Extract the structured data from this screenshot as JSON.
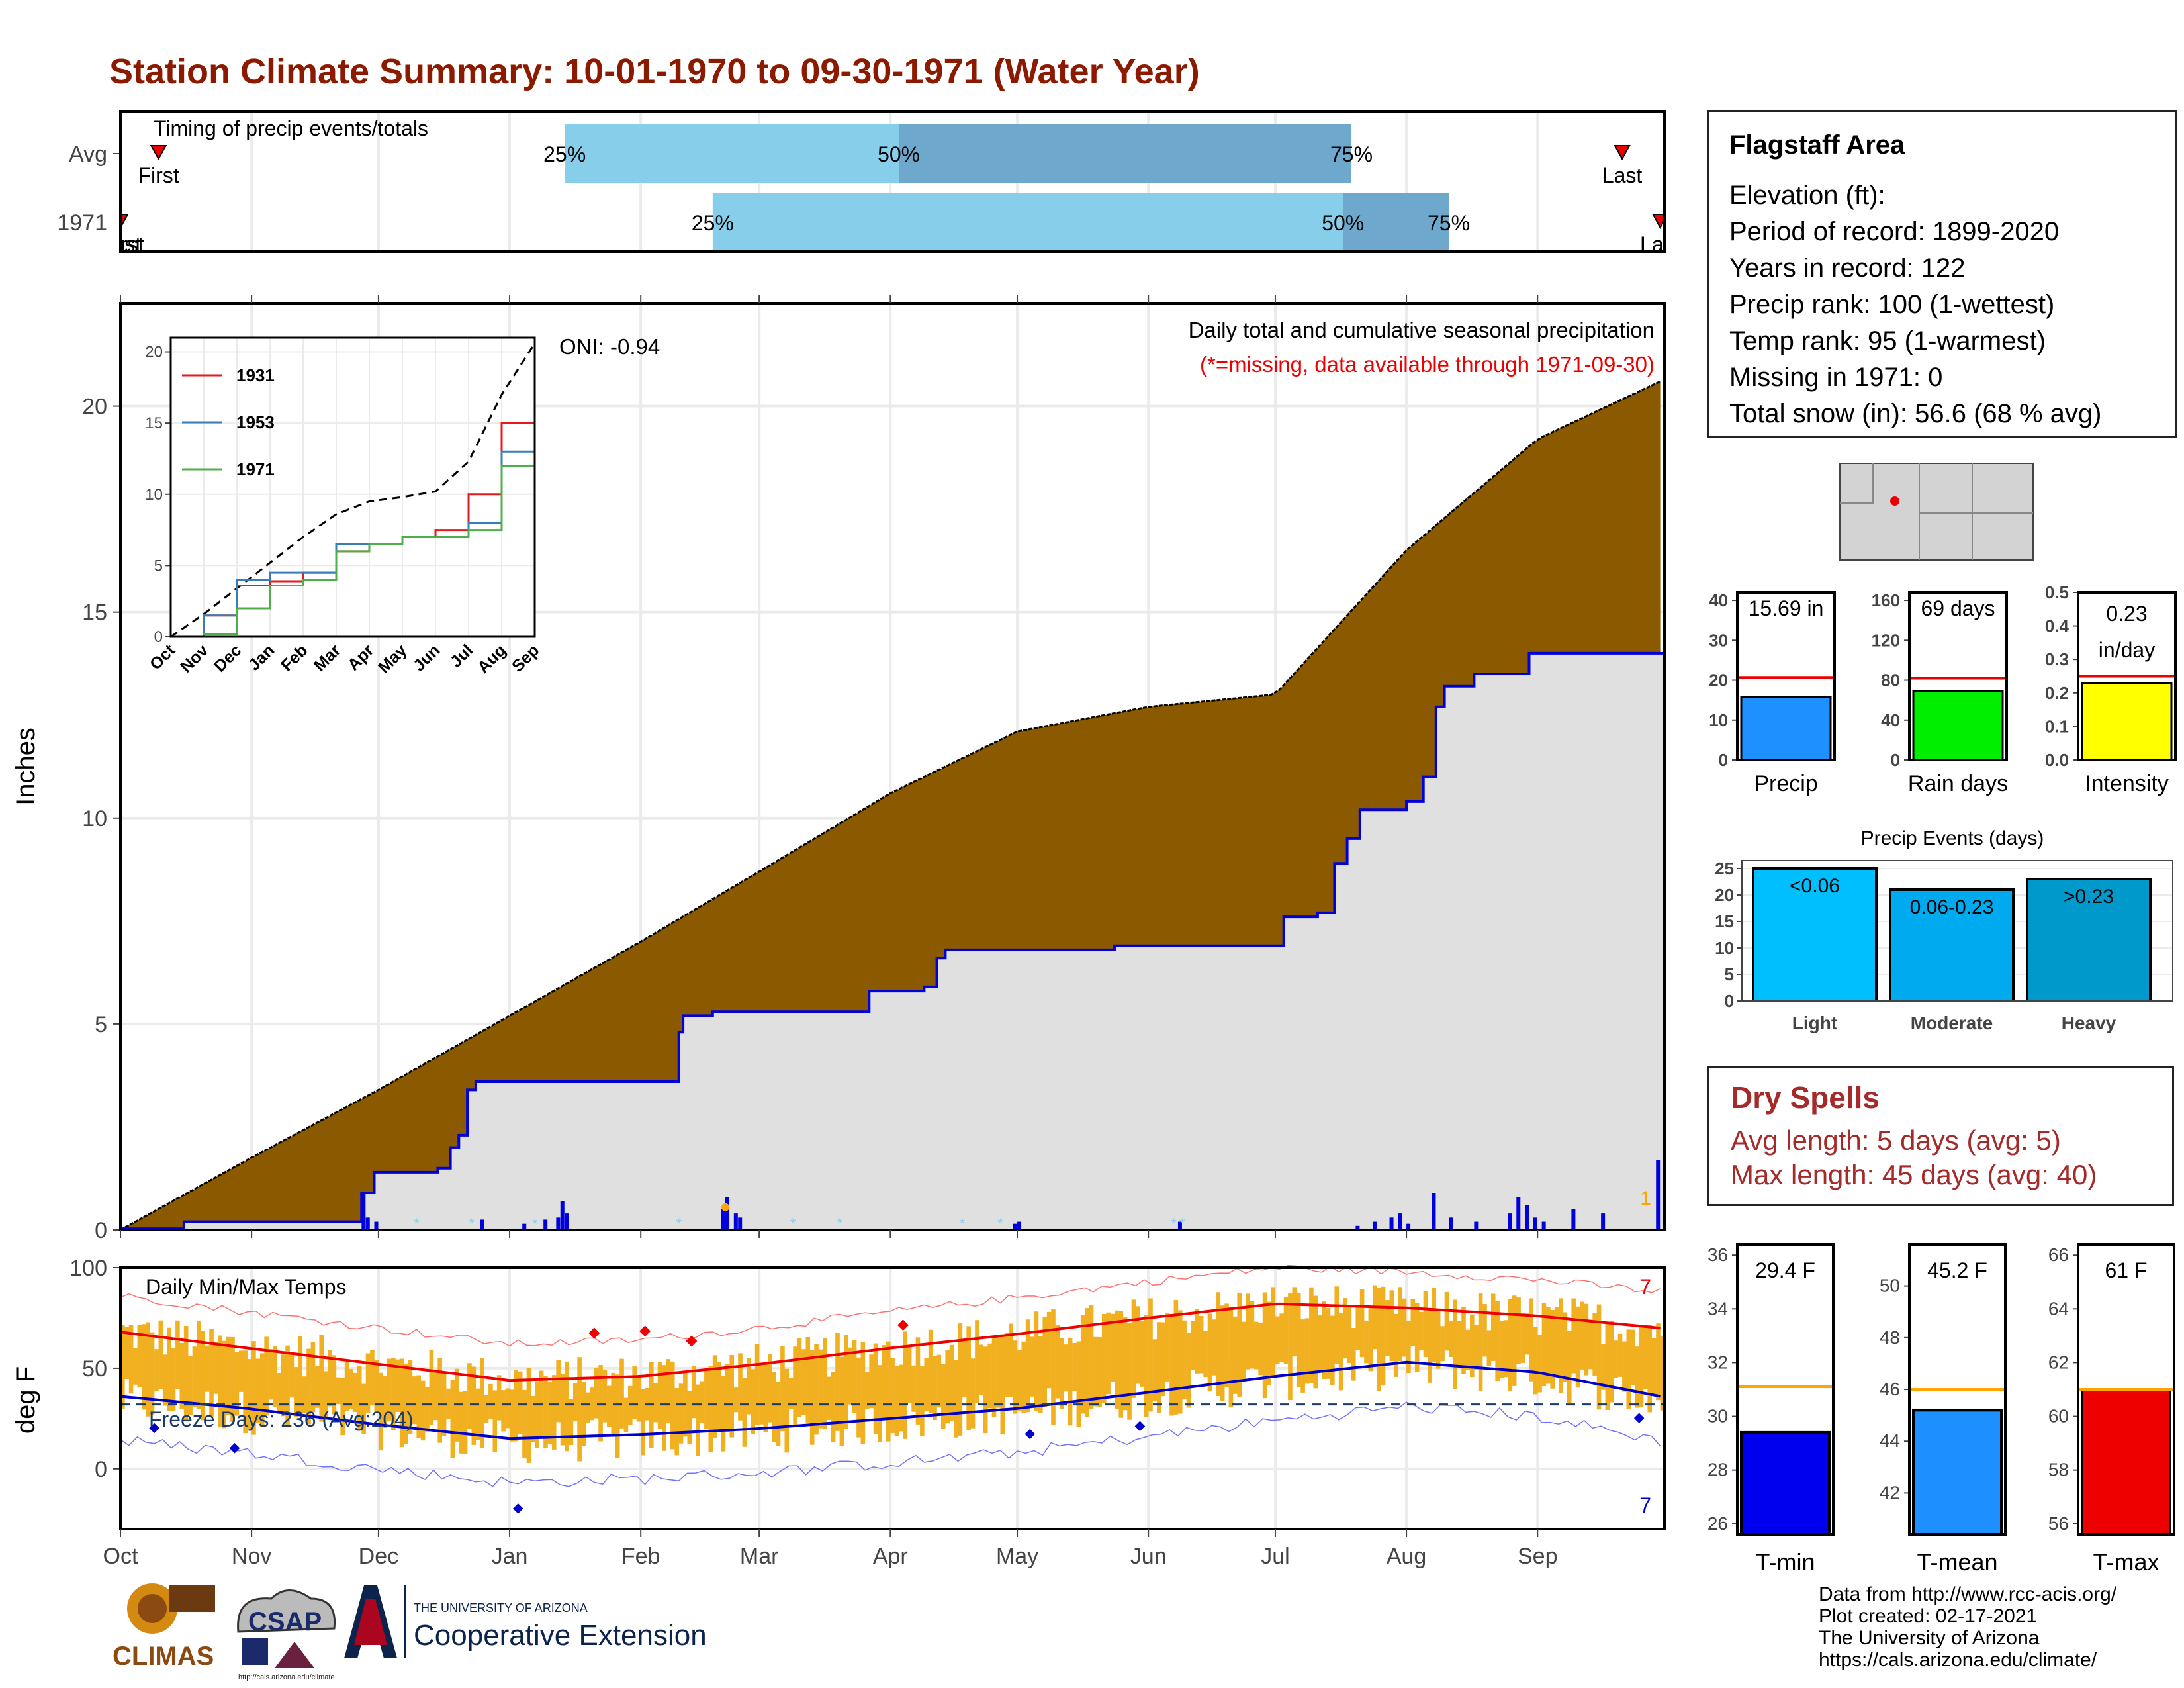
{
  "title": "Station Climate Summary: 10-01-1970 to 09-30-1971 (Water Year)",
  "timing": {
    "label": "Timing of precip events/totals",
    "rows": [
      "Avg",
      "1971"
    ],
    "avg": {
      "first_label": "First",
      "last_label": "Last",
      "p25": "25%",
      "p50": "50%",
      "p75": "75%"
    },
    "year": {
      "first_label": "First",
      "last_label": "Last",
      "p25": "25%",
      "p50": "50%",
      "p75": "75%"
    }
  },
  "precip_panel": {
    "ylabel": "Inches",
    "title": "Daily total and cumulative seasonal precipitation",
    "subtitle": "(*=missing, data available through 1971-09-30)",
    "oni": "ONI: -0.94",
    "yticks": [
      "0",
      "5",
      "10",
      "15",
      "20"
    ],
    "corner_marker": "1"
  },
  "inset": {
    "yticks": [
      "0",
      "5",
      "10",
      "15",
      "20"
    ],
    "xticks": [
      "Oct",
      "Nov",
      "Dec",
      "Jan",
      "Feb",
      "Mar",
      "Apr",
      "May",
      "Jun",
      "Jul",
      "Aug",
      "Sep"
    ],
    "legend": [
      "1931",
      "1953",
      "1971"
    ]
  },
  "temp_panel": {
    "ylabel": "deg F",
    "title": "Daily Min/Max Temps",
    "freeze": "Freeze Days: 236 (Avg:204)",
    "yticks": [
      "0",
      "50",
      "100"
    ],
    "max_count": "7",
    "min_count": "7"
  },
  "months": [
    "Oct",
    "Nov",
    "Dec",
    "Jan",
    "Feb",
    "Mar",
    "Apr",
    "May",
    "Jun",
    "Jul",
    "Aug",
    "Sep"
  ],
  "info": {
    "title": "Flagstaff Area",
    "lines": [
      "Elevation (ft):",
      "Period of record: 1899-2020",
      "Years in record: 122",
      "Precip rank: 100 (1-wettest)",
      "Temp rank: 95 (1-warmest)",
      "Missing in 1971: 0",
      "Total snow (in): 56.6 (68 % avg)"
    ]
  },
  "summary_bars": {
    "precip": {
      "label": "Precip",
      "value_text": "15.69 in",
      "yticks": [
        "0",
        "10",
        "20",
        "30",
        "40"
      ]
    },
    "rain_days": {
      "label": "Rain days",
      "value_text": "69 days",
      "yticks": [
        "0",
        "40",
        "80",
        "120",
        "160"
      ]
    },
    "intensity": {
      "label": "Intensity",
      "value_text": "0.23",
      "value_unit": "in/day",
      "yticks": [
        "0.0",
        "0.1",
        "0.2",
        "0.3",
        "0.4",
        "0.5"
      ]
    }
  },
  "events": {
    "title": "Precip Events (days)",
    "yticks": [
      "0",
      "5",
      "10",
      "15",
      "20",
      "25"
    ],
    "categories": [
      "Light",
      "Moderate",
      "Heavy"
    ],
    "labels": [
      "<0.06",
      "0.06-0.23",
      ">0.23"
    ]
  },
  "dry_spells": {
    "title": "Dry Spells",
    "avg": "Avg length: 5 days (avg: 5)",
    "max": "Max length: 45 days (avg: 40)"
  },
  "temp_bars": {
    "tmin": {
      "label": "T-min",
      "value_text": "29.4 F",
      "yticks": [
        "26",
        "28",
        "30",
        "32",
        "34",
        "36"
      ]
    },
    "tmean": {
      "label": "T-mean",
      "value_text": "45.2 F",
      "yticks": [
        "42",
        "44",
        "46",
        "48",
        "50"
      ]
    },
    "tmax": {
      "label": "T-max",
      "value_text": "61 F",
      "yticks": [
        "56",
        "58",
        "60",
        "62",
        "64",
        "66"
      ]
    }
  },
  "credits": [
    "Data from http://www.rcc-acis.org/",
    "Plot created: 02-17-2021",
    "The University of Arizona",
    "https://cals.arizona.edu/climate/"
  ],
  "logos": {
    "climas": "CLIMAS",
    "csap": "CSAP",
    "csap_url": "http://cals.arizona.edu/climate",
    "ua_small": "THE UNIVERSITY OF ARIZONA",
    "ua_big": "Cooperative Extension"
  },
  "colors": {
    "title": "#8b1a00",
    "brown_fill": "#8b5a00",
    "gray_fill": "#e0e0e0",
    "blue_line": "#0000dd",
    "light_blue": "#87ceeb",
    "mid_blue": "#6fa8cd",
    "temp_bar": "#f0b020",
    "red": "#ee0000",
    "blue": "#0000cc",
    "precip_bar": "#1e90ff",
    "rain_bar": "#00ee00",
    "intensity_bar": "#ffff00",
    "ev_light": "#00bfff",
    "ev_mod": "#00aaee",
    "ev_heavy": "#0099cc",
    "tmean_bar": "#1e8fff",
    "dry": "#a52a2a"
  },
  "chart_data": [
    {
      "type": "bar",
      "title": "Timing of precip events/totals",
      "categories": [
        "Avg",
        "1971"
      ],
      "series": [
        {
          "name": "25%",
          "values": [
            "Jan 14",
            "Feb 18"
          ]
        },
        {
          "name": "50%",
          "values": [
            "Apr 03",
            "Jul 17"
          ]
        },
        {
          "name": "75%",
          "values": [
            "Jul 19",
            "Aug 12"
          ]
        }
      ]
    },
    {
      "type": "area",
      "title": "Daily total and cumulative seasonal precipitation",
      "ylabel": "Inches",
      "ylim": [
        0,
        22.5
      ],
      "x": [
        0,
        30,
        61,
        92,
        123,
        151,
        182,
        212,
        243,
        273,
        304,
        335,
        364
      ],
      "series": [
        {
          "values": [
            0,
            1.7,
            3.4,
            5.2,
            7.0,
            8.7,
            10.6,
            12.1,
            12.7,
            13.0,
            16.5,
            19.2,
            20.6
          ]
        },
        {
          "values": [
            0,
            0.2,
            0.2,
            3.6,
            3.7,
            5.3,
            5.9,
            6.9,
            6.9,
            7.6,
            10.2,
            14.0,
            15.69
          ]
        }
      ]
    },
    {
      "type": "line",
      "ylim": [
        0,
        21
      ],
      "series": [
        {
          "name": "1931",
          "values": [
            0,
            1.5,
            3.6,
            3.9,
            4.5,
            6.0,
            6.5,
            7.0,
            7.5,
            10.0,
            15.0,
            19.0
          ]
        },
        {
          "name": "1953",
          "values": [
            0,
            1.5,
            4.0,
            4.5,
            4.5,
            6.5,
            6.5,
            7.0,
            7.0,
            8.0,
            13.0,
            18.0
          ]
        },
        {
          "name": "1971",
          "values": [
            0,
            0.2,
            2.0,
            3.6,
            4.0,
            6.0,
            6.5,
            7.0,
            7.0,
            7.5,
            12.0,
            17.0
          ]
        }
      ]
    },
    {
      "type": "line",
      "title": "Daily Min/Max Temps",
      "ylabel": "deg F",
      "ylim": [
        -30,
        100
      ],
      "x": [
        0,
        30,
        61,
        92,
        123,
        151,
        182,
        212,
        243,
        273,
        304,
        335,
        364
      ],
      "series": [
        {
          "values": [
            68,
            60,
            52,
            44,
            46,
            52,
            60,
            67,
            75,
            82,
            80,
            76,
            70
          ]
        },
        {
          "values": [
            36,
            30,
            22,
            15,
            17,
            20,
            25,
            30,
            38,
            46,
            53,
            48,
            36
          ]
        }
      ]
    },
    {
      "type": "bar",
      "categories": [
        "Precip",
        "Rain days",
        "Intensity"
      ],
      "values": [
        15.69,
        69,
        0.23
      ]
    },
    {
      "type": "bar",
      "title": "Precip Events (days)",
      "categories": [
        "Light",
        "Moderate",
        "Heavy"
      ],
      "values": [
        25,
        21,
        23
      ]
    },
    {
      "type": "bar",
      "categories": [
        "T-min",
        "T-mean",
        "T-max"
      ],
      "values": [
        29.4,
        45.2,
        61
      ]
    }
  ]
}
